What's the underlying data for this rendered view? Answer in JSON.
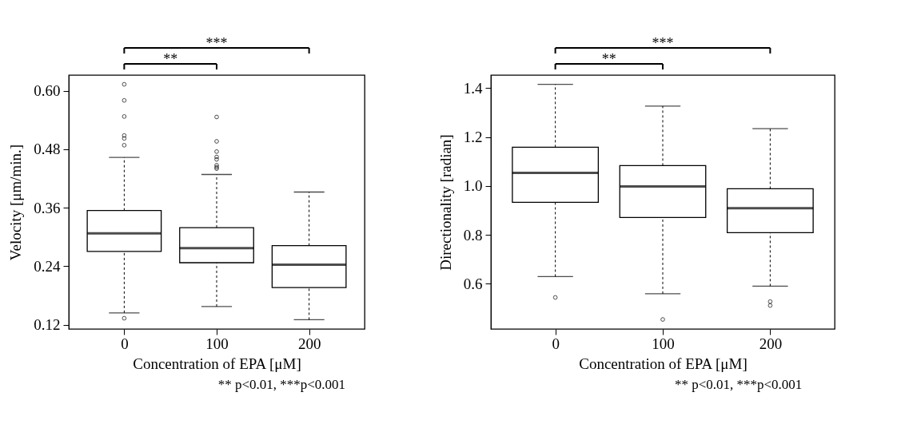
{
  "chart_data": [
    {
      "type": "box",
      "xlabel": "Concentration of EPA  [μM]",
      "ylabel": "Velocity  [μm/min.]",
      "categories": [
        "0",
        "100",
        "200"
      ],
      "boxes": [
        {
          "low": 0.144,
          "q1": 0.27,
          "median": 0.307,
          "q3": 0.354,
          "high": 0.463,
          "outliers": [
            0.613,
            0.58,
            0.547,
            0.508,
            0.502,
            0.488,
            0.133
          ]
        },
        {
          "low": 0.157,
          "q1": 0.247,
          "median": 0.277,
          "q3": 0.319,
          "high": 0.428,
          "outliers": [
            0.546,
            0.496,
            0.475,
            0.464,
            0.459,
            0.447,
            0.443,
            0.44
          ]
        },
        {
          "low": 0.13,
          "q1": 0.196,
          "median": 0.243,
          "q3": 0.282,
          "high": 0.392
        }
      ],
      "ylim": [
        0.111,
        0.632
      ],
      "yticks": [
        0.12,
        0.24,
        0.36,
        0.48,
        {
          "value": 0.6,
          "label": "0.60"
        }
      ],
      "grid": false,
      "annotations": [
        "**",
        "***",
        "** p<0.01,  ***p<0.001"
      ]
    },
    {
      "type": "box",
      "xlabel": "Concentration of EPA  [μM]",
      "ylabel": "Directionality  [radian]",
      "categories": [
        "0",
        "100",
        "200"
      ],
      "boxes": [
        {
          "low": 0.629,
          "q1": 0.933,
          "median": 1.053,
          "q3": 1.158,
          "high": 1.415,
          "outliers": [
            0.544
          ]
        },
        {
          "low": 0.559,
          "q1": 0.871,
          "median": 0.998,
          "q3": 1.083,
          "high": 1.326,
          "outliers": [
            0.454
          ]
        },
        {
          "low": 0.59,
          "q1": 0.809,
          "median": 0.909,
          "q3": 0.988,
          "high": 1.234,
          "outliers": [
            0.527,
            0.511
          ]
        }
      ],
      "ylim": [
        0.415,
        1.453
      ],
      "yticks": [
        0.6,
        0.8,
        {
          "value": 1,
          "label": "1.0"
        },
        1.2,
        1.4
      ],
      "grid": false,
      "annotations": [
        "**",
        "***",
        "** p<0.01,  ***p<0.001"
      ]
    }
  ]
}
